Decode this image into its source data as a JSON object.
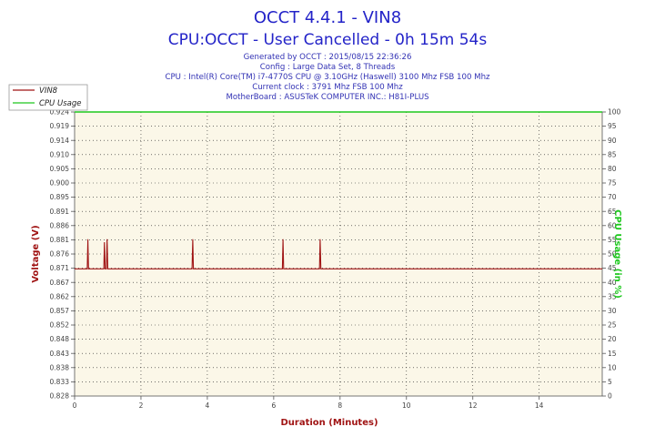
{
  "header": {
    "title": "OCCT 4.4.1 - VIN8",
    "subtitle": "CPU:OCCT - User Cancelled - 0h 15m 54s",
    "info_lines": [
      "Generated by OCCT : 2015/08/15 22:36:26",
      "Config : Large Data Set, 8 Threads",
      "CPU : Intel(R) Core(TM) i7-4770S CPU @ 3.10GHz (Haswell) 3100 Mhz FSB 100 Mhz",
      "Current clock : 3791 Mhz FSB 100 Mhz",
      "MotherBoard : ASUSTeK COMPUTER INC.: H81I-PLUS"
    ]
  },
  "colors": {
    "vin8": "#a01414",
    "cpu_usage": "#1ec81e",
    "plot_bg": "#fbf7e8",
    "grid": "#222222"
  },
  "chart_data": {
    "type": "line",
    "xlabel": "Duration (Minutes)",
    "ylabel": "Voltage (V)",
    "y2label": "CPU Usage (in %)",
    "xlim": [
      0,
      15.9
    ],
    "ylim": [
      0.828,
      0.924
    ],
    "y2lim": [
      0,
      100
    ],
    "x_ticks": [
      "0",
      "2",
      "4",
      "6",
      "8",
      "10",
      "12",
      "14"
    ],
    "x_tick_values": [
      0,
      2,
      4,
      6,
      8,
      10,
      12,
      14
    ],
    "y_ticks": [
      "0.828",
      "0.833",
      "0.838",
      "0.843",
      "0.848",
      "0.852",
      "0.857",
      "0.862",
      "0.867",
      "0.871",
      "0.876",
      "0.881",
      "0.886",
      "0.891",
      "0.895",
      "0.900",
      "0.905",
      "0.910",
      "0.914",
      "0.919",
      "0.924"
    ],
    "y2_ticks": [
      "0",
      "5",
      "10",
      "15",
      "20",
      "25",
      "30",
      "35",
      "40",
      "45",
      "50",
      "55",
      "60",
      "65",
      "70",
      "75",
      "80",
      "85",
      "90",
      "95",
      "100"
    ],
    "grid": true,
    "legend_position": "top-left",
    "series": [
      {
        "name": "VIN8",
        "axis": "left",
        "x": [
          0,
          0.38,
          0.4,
          0.42,
          0.44,
          0.88,
          0.9,
          0.92,
          0.96,
          0.98,
          1.0,
          3.54,
          3.56,
          3.58,
          6.26,
          6.28,
          6.3,
          7.38,
          7.4,
          7.42,
          15.9
        ],
        "y": [
          0.871,
          0.871,
          0.881,
          0.871,
          0.871,
          0.871,
          0.88,
          0.871,
          0.871,
          0.881,
          0.871,
          0.871,
          0.881,
          0.871,
          0.871,
          0.881,
          0.871,
          0.871,
          0.881,
          0.871,
          0.871
        ]
      },
      {
        "name": "CPU Usage",
        "axis": "right",
        "x": [
          0,
          15.9
        ],
        "y": [
          100,
          100
        ]
      }
    ]
  }
}
